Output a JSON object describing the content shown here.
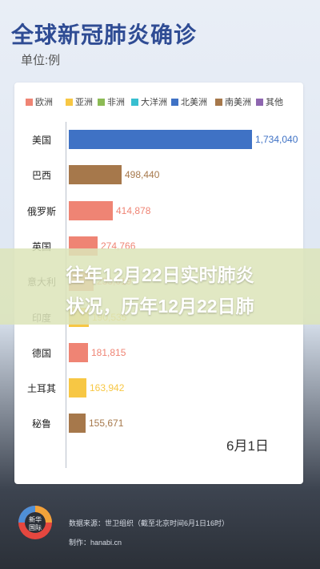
{
  "header": {
    "title": "全球新冠肺炎确诊",
    "unit": "单位:例"
  },
  "legend": [
    {
      "name": "欧洲",
      "color": "#ef8474"
    },
    {
      "name": "亚洲",
      "color": "#f7c744"
    },
    {
      "name": "非洲",
      "color": "#8cbb55"
    },
    {
      "name": "大洋洲",
      "color": "#38bfd0"
    },
    {
      "name": "北美洲",
      "color": "#3f72c5"
    },
    {
      "name": "南美洲",
      "color": "#a6784b"
    },
    {
      "name": "其他",
      "color": "#8e66b0"
    }
  ],
  "chart_data": {
    "type": "bar",
    "orientation": "horizontal",
    "title": "全球新冠肺炎确诊",
    "subtitle": "单位:例",
    "date": "6月1日",
    "categories": [
      "美国",
      "巴西",
      "俄罗斯",
      "英国",
      "意大利",
      "印度",
      "德国",
      "土耳其",
      "秘鲁"
    ],
    "values": [
      1734040,
      498440,
      414878,
      274766,
      233019,
      190535,
      181815,
      163942,
      155671
    ],
    "value_labels": [
      "1,734,040",
      "498,440",
      "414,878",
      "274,766",
      "233,019",
      "190,535",
      "181,815",
      "163,942",
      "155,671"
    ],
    "regions": [
      "北美洲",
      "南美洲",
      "欧洲",
      "欧洲",
      "欧洲",
      "亚洲",
      "欧洲",
      "亚洲",
      "南美洲"
    ],
    "xlim": [
      0,
      1734040
    ],
    "legend_position": "top"
  },
  "overlay": {
    "line1": "往年12月22日实时肺炎",
    "line2": "状况，历年12月22日肺"
  },
  "footer": {
    "logo_text_1": "新华",
    "logo_text_2": "国际",
    "source": "数据来源：世卫组织（截至北京时间6月1日16时）",
    "designer": "制作：hanabi.cn"
  }
}
